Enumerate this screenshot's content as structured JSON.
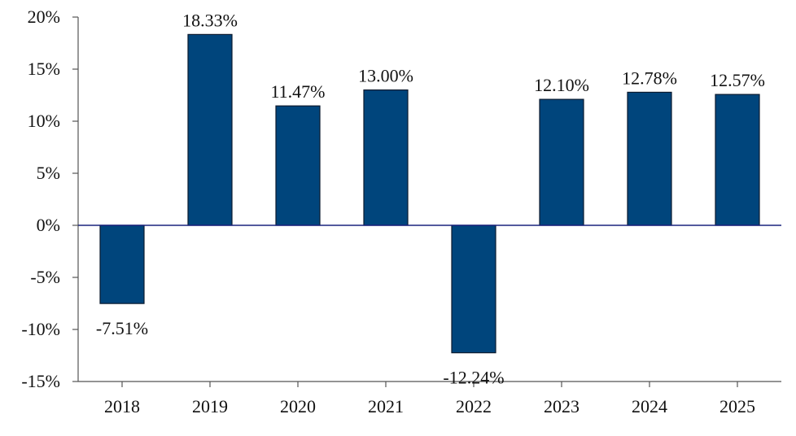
{
  "chart_data": {
    "type": "bar",
    "categories": [
      "2018",
      "2019",
      "2020",
      "2021",
      "2022",
      "2023",
      "2024",
      "2025"
    ],
    "values": [
      -7.51,
      18.33,
      11.47,
      13.0,
      -12.24,
      12.1,
      12.78,
      12.57
    ],
    "data_labels": [
      "-7.51%",
      "18.33%",
      "11.47%",
      "13.00%",
      "-12.24%",
      "12.10%",
      "12.78%",
      "12.57%"
    ],
    "ylim": [
      -15,
      20
    ],
    "yticks": [
      20,
      15,
      10,
      5,
      0,
      -5,
      -10,
      -15
    ],
    "ytick_labels": [
      "20%",
      "15%",
      "10%",
      "5%",
      "0%",
      "-5%",
      "-10%",
      "-15%"
    ],
    "bar_color": "#00457c",
    "zero_line_color": "#1a237e",
    "grid": false,
    "legend": "none"
  }
}
